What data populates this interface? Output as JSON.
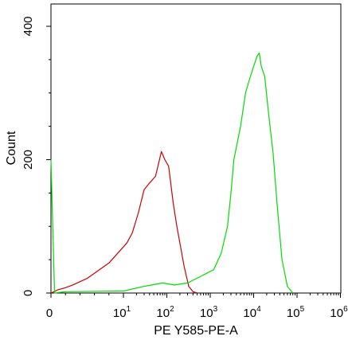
{
  "chart_data": {
    "type": "histogram",
    "xlabel": "PE Y585-PE-A",
    "ylabel": "Count",
    "x_scale": "biexponential (0, then log decades)",
    "xlim": [
      0,
      1000000
    ],
    "ylim": [
      0,
      420
    ],
    "x_ticks": [
      {
        "base": "0",
        "exp": ""
      },
      {
        "base": "10",
        "exp": "1"
      },
      {
        "base": "10",
        "exp": "2"
      },
      {
        "base": "10",
        "exp": "3"
      },
      {
        "base": "10",
        "exp": "4"
      },
      {
        "base": "10",
        "exp": "5"
      },
      {
        "base": "10",
        "exp": "6"
      }
    ],
    "y_ticks": [
      "0",
      "200",
      "400"
    ],
    "grid": false,
    "series": [
      {
        "color": "#cc0000",
        "points": [
          [
            0,
            0
          ],
          [
            1,
            5
          ],
          [
            2,
            8
          ],
          [
            3,
            12
          ],
          [
            5,
            22
          ],
          [
            8,
            45
          ],
          [
            12,
            75
          ],
          [
            16,
            90
          ],
          [
            22,
            120
          ],
          [
            30,
            155
          ],
          [
            40,
            165
          ],
          [
            55,
            175
          ],
          [
            65,
            195
          ],
          [
            75,
            212
          ],
          [
            90,
            200
          ],
          [
            110,
            190
          ],
          [
            140,
            135
          ],
          [
            170,
            100
          ],
          [
            200,
            75
          ],
          [
            250,
            40
          ],
          [
            320,
            10
          ],
          [
            400,
            2
          ],
          [
            500,
            0
          ]
        ]
      },
      {
        "color": "#00dd00",
        "points": [
          [
            0,
            200
          ],
          [
            0.5,
            0
          ],
          [
            2,
            2
          ],
          [
            10,
            3
          ],
          [
            30,
            10
          ],
          [
            80,
            15
          ],
          [
            150,
            12
          ],
          [
            300,
            15
          ],
          [
            600,
            25
          ],
          [
            1200,
            35
          ],
          [
            1800,
            60
          ],
          [
            2500,
            100
          ],
          [
            3000,
            150
          ],
          [
            3500,
            200
          ],
          [
            5000,
            250
          ],
          [
            6500,
            300
          ],
          [
            8000,
            320
          ],
          [
            10000,
            340
          ],
          [
            12000,
            355
          ],
          [
            13500,
            360
          ],
          [
            15000,
            340
          ],
          [
            18000,
            325
          ],
          [
            22000,
            270
          ],
          [
            28000,
            210
          ],
          [
            35000,
            130
          ],
          [
            45000,
            50
          ],
          [
            60000,
            10
          ],
          [
            80000,
            0
          ]
        ]
      }
    ]
  }
}
